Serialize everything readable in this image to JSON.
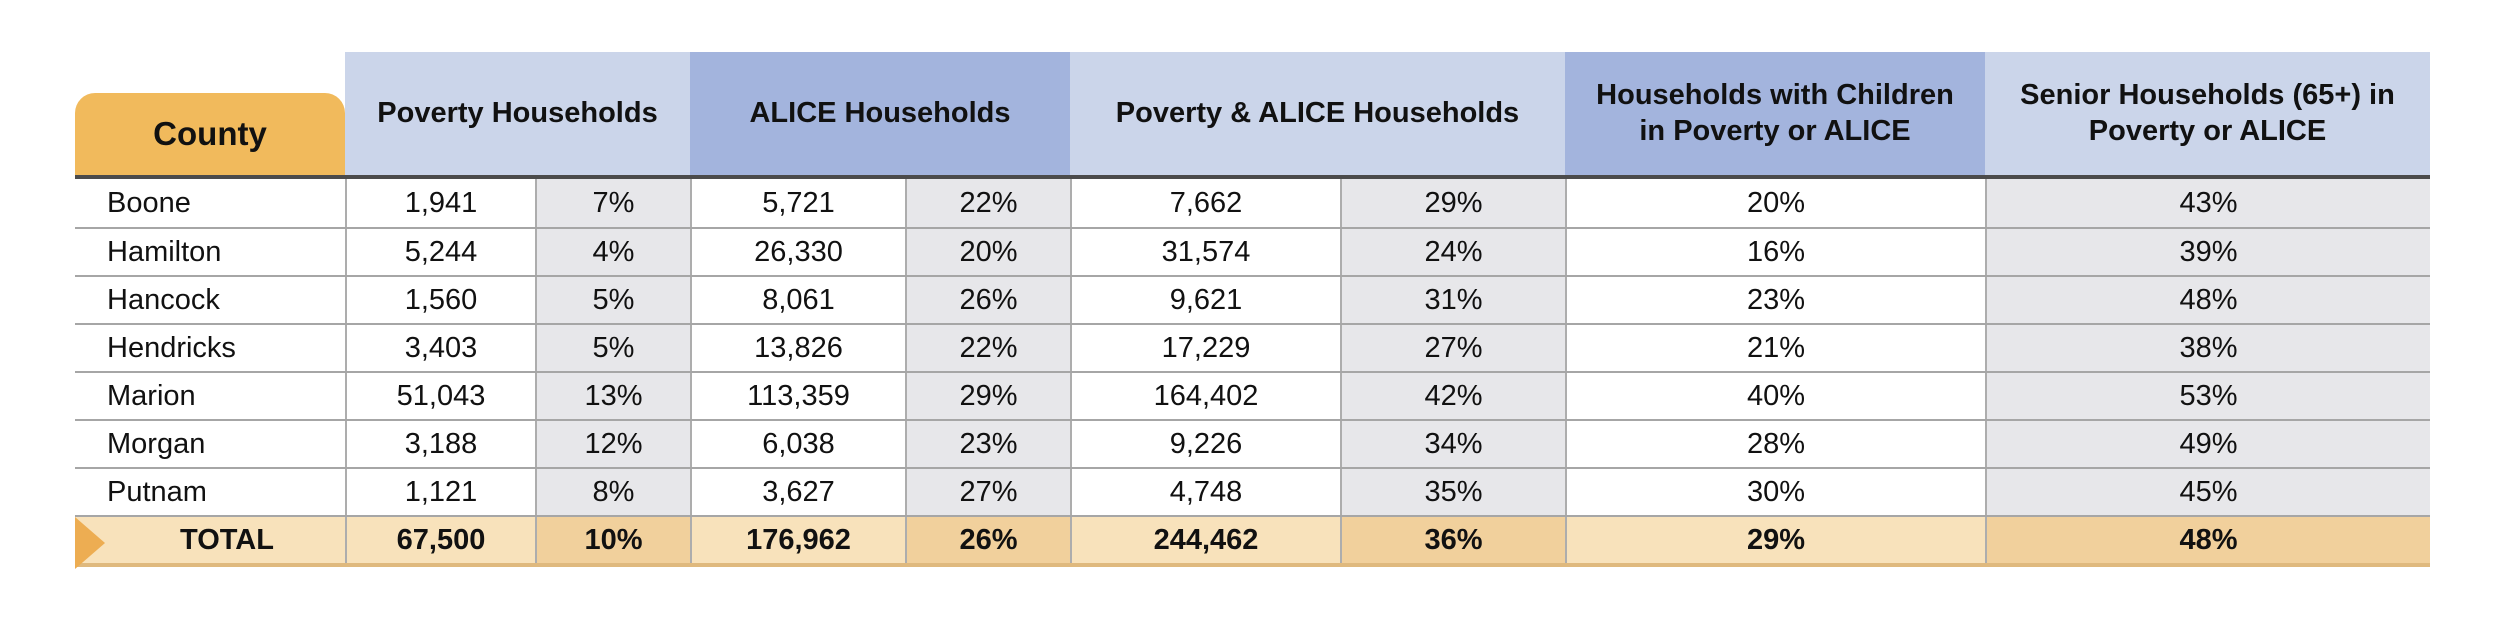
{
  "colors": {
    "county_header_bg": "#f1ba5c",
    "header_light_blue": "#cbd5ea",
    "header_dark_blue": "#a3b4dd",
    "percent_cell_gray": "#e7e7ea",
    "total_row_light_orange": "#f8e2bb",
    "total_row_dark_orange": "#f1d09c",
    "total_arrow_orange": "#edad52",
    "header_underline": "#4b4b4b",
    "row_divider": "#a6a6a6"
  },
  "table": {
    "header": {
      "county": "County",
      "groups": [
        {
          "label": "Poverty Households"
        },
        {
          "label": "ALICE Households"
        },
        {
          "label": "Poverty & ALICE Households"
        },
        {
          "label": "Households with Children in Poverty or ALICE"
        },
        {
          "label": "Senior Households (65+) in Poverty or ALICE"
        }
      ]
    },
    "rows": [
      {
        "county": "Boone",
        "poverty_n": "1,941",
        "poverty_pct": "7%",
        "alice_n": "5,721",
        "alice_pct": "22%",
        "pa_n": "7,662",
        "pa_pct": "29%",
        "children_pct": "20%",
        "senior_pct": "43%"
      },
      {
        "county": "Hamilton",
        "poverty_n": "5,244",
        "poverty_pct": "4%",
        "alice_n": "26,330",
        "alice_pct": "20%",
        "pa_n": "31,574",
        "pa_pct": "24%",
        "children_pct": "16%",
        "senior_pct": "39%"
      },
      {
        "county": "Hancock",
        "poverty_n": "1,560",
        "poverty_pct": "5%",
        "alice_n": "8,061",
        "alice_pct": "26%",
        "pa_n": "9,621",
        "pa_pct": "31%",
        "children_pct": "23%",
        "senior_pct": "48%"
      },
      {
        "county": "Hendricks",
        "poverty_n": "3,403",
        "poverty_pct": "5%",
        "alice_n": "13,826",
        "alice_pct": "22%",
        "pa_n": "17,229",
        "pa_pct": "27%",
        "children_pct": "21%",
        "senior_pct": "38%"
      },
      {
        "county": "Marion",
        "poverty_n": "51,043",
        "poverty_pct": "13%",
        "alice_n": "113,359",
        "alice_pct": "29%",
        "pa_n": "164,402",
        "pa_pct": "42%",
        "children_pct": "40%",
        "senior_pct": "53%"
      },
      {
        "county": "Morgan",
        "poverty_n": "3,188",
        "poverty_pct": "12%",
        "alice_n": "6,038",
        "alice_pct": "23%",
        "pa_n": "9,226",
        "pa_pct": "34%",
        "children_pct": "28%",
        "senior_pct": "49%"
      },
      {
        "county": "Putnam",
        "poverty_n": "1,121",
        "poverty_pct": "8%",
        "alice_n": "3,627",
        "alice_pct": "27%",
        "pa_n": "4,748",
        "pa_pct": "35%",
        "children_pct": "30%",
        "senior_pct": "45%"
      }
    ],
    "total": {
      "county": "TOTAL",
      "poverty_n": "67,500",
      "poverty_pct": "10%",
      "alice_n": "176,962",
      "alice_pct": "26%",
      "pa_n": "244,462",
      "pa_pct": "36%",
      "children_pct": "29%",
      "senior_pct": "48%"
    }
  },
  "chart_data": {
    "type": "table",
    "columns": [
      "County",
      "Poverty Households (count)",
      "Poverty Households (%)",
      "ALICE Households (count)",
      "ALICE Households (%)",
      "Poverty & ALICE Households (count)",
      "Poverty & ALICE Households (%)",
      "Households with Children in Poverty or ALICE (%)",
      "Senior Households (65+) in Poverty or ALICE (%)"
    ],
    "rows": [
      [
        "Boone",
        1941,
        7,
        5721,
        22,
        7662,
        29,
        20,
        43
      ],
      [
        "Hamilton",
        5244,
        4,
        26330,
        20,
        31574,
        24,
        16,
        39
      ],
      [
        "Hancock",
        1560,
        5,
        8061,
        26,
        9621,
        31,
        23,
        48
      ],
      [
        "Hendricks",
        3403,
        5,
        13826,
        22,
        17229,
        27,
        21,
        38
      ],
      [
        "Marion",
        51043,
        13,
        113359,
        29,
        164402,
        42,
        40,
        53
      ],
      [
        "Morgan",
        3188,
        12,
        6038,
        23,
        9226,
        34,
        28,
        49
      ],
      [
        "Putnam",
        1121,
        8,
        3627,
        27,
        4748,
        35,
        30,
        45
      ],
      [
        "TOTAL",
        67500,
        10,
        176962,
        26,
        244462,
        36,
        29,
        48
      ]
    ]
  }
}
